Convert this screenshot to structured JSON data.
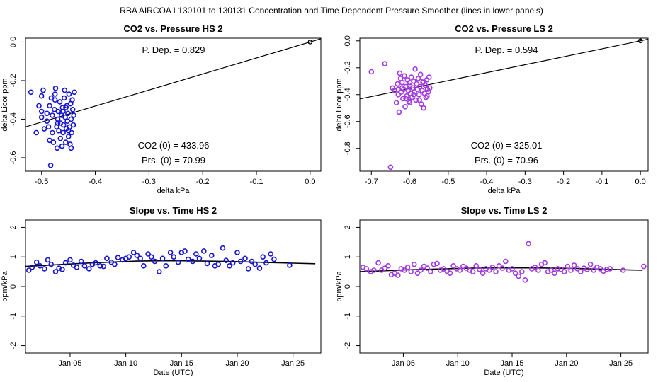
{
  "suptitle": "RBA   AIRCOA I   130101 to 130131   Concentration and Time Dependent Pressure Smoother (lines in lower panels)",
  "colors": {
    "hs": "#1515d0",
    "ls": "#a23be0",
    "line": "#000000",
    "axis": "#000000"
  },
  "chart_data": [
    {
      "id": "p1",
      "type": "scatter",
      "title": "CO2 vs. Pressure HS 2",
      "xlabel": "delta kPa",
      "ylabel": "delta Licor ppm",
      "xlim": [
        -0.53,
        0.02
      ],
      "ylim": [
        -0.67,
        0.02
      ],
      "xticks": [
        -0.5,
        -0.4,
        -0.3,
        -0.2,
        -0.1,
        0.0
      ],
      "xtick_labels": [
        "-0.5",
        "-0.4",
        "-0.3",
        "-0.2",
        "-0.1",
        "0.0"
      ],
      "yticks": [
        0.0,
        -0.2,
        -0.4,
        -0.6
      ],
      "ytick_labels": [
        "0.0",
        "-0.2",
        "-0.4",
        "-0.6"
      ],
      "annotations": {
        "p_dep": "P. Dep. =  0.829",
        "co2_0": "CO2 (0) =  433.96",
        "prs_0": "Prs. (0) =  70.99"
      },
      "fit_line": {
        "x": [
          -0.53,
          0.02
        ],
        "y": [
          -0.44,
          0.017
        ]
      },
      "anchor_point": {
        "x": 0.0,
        "y": 0.0
      },
      "color": "hs",
      "points": [
        [
          -0.52,
          -0.26
        ],
        [
          -0.51,
          -0.47
        ],
        [
          -0.505,
          -0.33
        ],
        [
          -0.5,
          -0.36
        ],
        [
          -0.5,
          -0.28
        ],
        [
          -0.497,
          -0.25
        ],
        [
          -0.495,
          -0.45
        ],
        [
          -0.49,
          -0.41
        ],
        [
          -0.49,
          -0.37
        ],
        [
          -0.487,
          -0.44
        ],
        [
          -0.485,
          -0.33
        ],
        [
          -0.483,
          -0.64
        ],
        [
          -0.482,
          -0.29
        ],
        [
          -0.48,
          -0.38
        ],
        [
          -0.48,
          -0.47
        ],
        [
          -0.478,
          -0.52
        ],
        [
          -0.476,
          -0.35
        ],
        [
          -0.475,
          -0.3
        ],
        [
          -0.474,
          -0.24
        ],
        [
          -0.472,
          -0.44
        ],
        [
          -0.471,
          -0.55
        ],
        [
          -0.47,
          -0.4
        ],
        [
          -0.469,
          -0.36
        ],
        [
          -0.468,
          -0.46
        ],
        [
          -0.466,
          -0.31
        ],
        [
          -0.465,
          -0.5
        ],
        [
          -0.465,
          -0.42
        ],
        [
          -0.463,
          -0.38
        ],
        [
          -0.462,
          -0.54
        ],
        [
          -0.461,
          -0.34
        ],
        [
          -0.46,
          -0.47
        ],
        [
          -0.459,
          -0.43
        ],
        [
          -0.458,
          -0.29
        ],
        [
          -0.457,
          -0.25
        ],
        [
          -0.456,
          -0.39
        ],
        [
          -0.455,
          -0.52
        ],
        [
          -0.454,
          -0.45
        ],
        [
          -0.453,
          -0.33
        ],
        [
          -0.452,
          -0.41
        ],
        [
          -0.451,
          -0.37
        ],
        [
          -0.45,
          -0.49
        ],
        [
          -0.449,
          -0.27
        ],
        [
          -0.448,
          -0.44
        ],
        [
          -0.447,
          -0.53
        ],
        [
          -0.446,
          -0.32
        ],
        [
          -0.445,
          -0.4
        ],
        [
          -0.444,
          -0.47
        ],
        [
          -0.443,
          -0.3
        ],
        [
          -0.442,
          -0.35
        ],
        [
          -0.441,
          -0.43
        ],
        [
          -0.44,
          -0.38
        ],
        [
          -0.439,
          -0.26
        ],
        [
          -0.445,
          -0.55
        ],
        [
          -0.455,
          -0.34
        ],
        [
          -0.47,
          -0.42
        ],
        [
          -0.5,
          -0.39
        ],
        [
          -0.485,
          -0.51
        ],
        [
          -0.46,
          -0.36
        ],
        [
          -0.45,
          -0.46
        ],
        [
          -0.475,
          -0.27
        ]
      ]
    },
    {
      "id": "p2",
      "type": "scatter",
      "title": "CO2 vs. Pressure LS 2",
      "xlabel": "delta kPa",
      "ylabel": "delta Licor ppm",
      "xlim": [
        -0.73,
        0.02
      ],
      "ylim": [
        -0.97,
        0.02
      ],
      "xticks": [
        -0.7,
        -0.6,
        -0.5,
        -0.4,
        -0.3,
        -0.2,
        -0.1,
        0.0
      ],
      "xtick_labels": [
        "-0.7",
        "-0.6",
        "-0.5",
        "-0.4",
        "-0.3",
        "-0.2",
        "-0.1",
        "0.0"
      ],
      "yticks": [
        0.0,
        -0.2,
        -0.4,
        -0.6,
        -0.8
      ],
      "ytick_labels": [
        "0.0",
        "-0.2",
        "-0.4",
        "-0.6",
        "-0.8"
      ],
      "annotations": {
        "p_dep": "P. Dep. =  0.594",
        "co2_0": "CO2 (0) =  325.01",
        "prs_0": "Prs. (0) =  70.96"
      },
      "fit_line": {
        "x": [
          -0.73,
          0.02
        ],
        "y": [
          -0.432,
          0.012
        ]
      },
      "anchor_point": {
        "x": 0.0,
        "y": 0.0
      },
      "color": "ls",
      "points": [
        [
          -0.7,
          -0.23
        ],
        [
          -0.665,
          -0.17
        ],
        [
          -0.65,
          -0.94
        ],
        [
          -0.645,
          -0.35
        ],
        [
          -0.64,
          -0.37
        ],
        [
          -0.635,
          -0.46
        ],
        [
          -0.632,
          -0.32
        ],
        [
          -0.63,
          -0.4
        ],
        [
          -0.628,
          -0.53
        ],
        [
          -0.626,
          -0.24
        ],
        [
          -0.624,
          -0.28
        ],
        [
          -0.622,
          -0.38
        ],
        [
          -0.62,
          -0.31
        ],
        [
          -0.618,
          -0.43
        ],
        [
          -0.616,
          -0.36
        ],
        [
          -0.614,
          -0.26
        ],
        [
          -0.612,
          -0.49
        ],
        [
          -0.61,
          -0.34
        ],
        [
          -0.608,
          -0.41
        ],
        [
          -0.606,
          -0.29
        ],
        [
          -0.604,
          -0.37
        ],
        [
          -0.602,
          -0.45
        ],
        [
          -0.6,
          -0.33
        ],
        [
          -0.598,
          -0.39
        ],
        [
          -0.596,
          -0.27
        ],
        [
          -0.594,
          -0.42
        ],
        [
          -0.592,
          -0.35
        ],
        [
          -0.59,
          -0.3
        ],
        [
          -0.588,
          -0.38
        ],
        [
          -0.586,
          -0.21
        ],
        [
          -0.584,
          -0.44
        ],
        [
          -0.582,
          -0.32
        ],
        [
          -0.58,
          -0.36
        ],
        [
          -0.578,
          -0.28
        ],
        [
          -0.576,
          -0.4
        ],
        [
          -0.574,
          -0.34
        ],
        [
          -0.572,
          -0.25
        ],
        [
          -0.57,
          -0.47
        ],
        [
          -0.568,
          -0.37
        ],
        [
          -0.566,
          -0.31
        ],
        [
          -0.564,
          -0.5
        ],
        [
          -0.562,
          -0.39
        ],
        [
          -0.56,
          -0.33
        ],
        [
          -0.558,
          -0.42
        ],
        [
          -0.556,
          -0.29
        ],
        [
          -0.554,
          -0.36
        ],
        [
          -0.552,
          -0.38
        ],
        [
          -0.55,
          -0.27
        ],
        [
          -0.548,
          -0.35
        ],
        [
          -0.61,
          -0.43
        ],
        [
          -0.59,
          -0.4
        ],
        [
          -0.62,
          -0.35
        ],
        [
          -0.6,
          -0.31
        ],
        [
          -0.575,
          -0.44
        ],
        [
          -0.565,
          -0.3
        ],
        [
          -0.555,
          -0.41
        ],
        [
          -0.63,
          -0.36
        ],
        [
          -0.6,
          -0.46
        ]
      ]
    },
    {
      "id": "p3",
      "type": "scatter",
      "title": "Slope vs. Time HS 2",
      "xlabel": "Date (UTC)",
      "ylabel": "ppm/kPa",
      "xlim": [
        0,
        26.5
      ],
      "ylim": [
        -2.25,
        2.25
      ],
      "xticks": [
        4,
        9,
        14,
        19,
        24
      ],
      "xtick_labels": [
        "Jan 05",
        "Jan 10",
        "Jan 15",
        "Jan 20",
        "Jan 25"
      ],
      "yticks": [
        2,
        1,
        0,
        -1,
        -2
      ],
      "ytick_labels": [
        "2",
        "1",
        "0",
        "-1",
        "-2"
      ],
      "smoother": {
        "x": [
          0,
          2,
          4,
          6,
          8,
          10,
          12,
          14,
          16,
          18,
          20,
          22,
          24,
          26
        ],
        "y": [
          0.68,
          0.72,
          0.76,
          0.8,
          0.83,
          0.86,
          0.87,
          0.87,
          0.86,
          0.85,
          0.83,
          0.81,
          0.79,
          0.77
        ]
      },
      "color": "hs",
      "points": [
        [
          0.3,
          0.55
        ],
        [
          0.6,
          0.65
        ],
        [
          1.0,
          0.82
        ],
        [
          1.3,
          0.7
        ],
        [
          1.7,
          0.6
        ],
        [
          2.0,
          0.9
        ],
        [
          2.3,
          0.75
        ],
        [
          2.7,
          0.5
        ],
        [
          3.0,
          0.62
        ],
        [
          3.3,
          0.58
        ],
        [
          3.6,
          0.8
        ],
        [
          4.0,
          0.9
        ],
        [
          4.3,
          0.72
        ],
        [
          4.6,
          0.65
        ],
        [
          5.0,
          0.85
        ],
        [
          5.3,
          0.7
        ],
        [
          5.7,
          0.6
        ],
        [
          6.0,
          0.75
        ],
        [
          6.3,
          0.8
        ],
        [
          6.7,
          0.7
        ],
        [
          7.0,
          0.68
        ],
        [
          7.3,
          0.95
        ],
        [
          7.7,
          0.82
        ],
        [
          8.0,
          0.75
        ],
        [
          8.3,
          0.98
        ],
        [
          8.7,
          0.9
        ],
        [
          9.0,
          0.95
        ],
        [
          9.3,
          1.0
        ],
        [
          9.7,
          1.15
        ],
        [
          10.0,
          1.05
        ],
        [
          10.3,
          0.95
        ],
        [
          10.6,
          0.7
        ],
        [
          11.0,
          1.1
        ],
        [
          11.3,
          1.0
        ],
        [
          11.6,
          0.85
        ],
        [
          12.0,
          0.5
        ],
        [
          12.3,
          0.95
        ],
        [
          12.6,
          0.7
        ],
        [
          13.0,
          1.15
        ],
        [
          13.3,
          1.0
        ],
        [
          13.7,
          0.82
        ],
        [
          14.0,
          1.15
        ],
        [
          14.3,
          1.2
        ],
        [
          14.6,
          0.92
        ],
        [
          15.0,
          0.85
        ],
        [
          15.3,
          1.1
        ],
        [
          15.6,
          0.95
        ],
        [
          16.0,
          1.2
        ],
        [
          16.3,
          0.78
        ],
        [
          16.7,
          1.05
        ],
        [
          17.0,
          0.7
        ],
        [
          17.3,
          0.75
        ],
        [
          17.7,
          1.3
        ],
        [
          18.0,
          0.88
        ],
        [
          18.3,
          0.7
        ],
        [
          18.6,
          0.8
        ],
        [
          19.0,
          1.15
        ],
        [
          19.3,
          0.85
        ],
        [
          19.7,
          0.95
        ],
        [
          20.0,
          0.6
        ],
        [
          20.3,
          0.85
        ],
        [
          20.6,
          0.75
        ],
        [
          21.0,
          0.62
        ],
        [
          21.3,
          1.0
        ],
        [
          21.6,
          0.8
        ],
        [
          22.0,
          1.1
        ],
        [
          22.3,
          0.92
        ],
        [
          23.7,
          0.72
        ]
      ]
    },
    {
      "id": "p4",
      "type": "scatter",
      "title": "Slope vs. Time LS 2",
      "xlabel": "Date (UTC)",
      "ylabel": "ppm/kPa",
      "xlim": [
        0,
        26.5
      ],
      "ylim": [
        -2.25,
        2.25
      ],
      "xticks": [
        4,
        9,
        14,
        19,
        24
      ],
      "xtick_labels": [
        "Jan 05",
        "Jan 10",
        "Jan 15",
        "Jan 20",
        "Jan 25"
      ],
      "yticks": [
        2,
        1,
        0,
        -1,
        -2
      ],
      "ytick_labels": [
        "2",
        "1",
        "0",
        "-1",
        "-2"
      ],
      "smoother": {
        "x": [
          0,
          2,
          4,
          6,
          8,
          10,
          12,
          14,
          16,
          18,
          20,
          22,
          24,
          26
        ],
        "y": [
          0.5,
          0.53,
          0.56,
          0.58,
          0.6,
          0.62,
          0.63,
          0.63,
          0.63,
          0.62,
          0.61,
          0.59,
          0.57,
          0.55
        ]
      },
      "color": "ls",
      "points": [
        [
          0.3,
          0.65
        ],
        [
          0.6,
          0.6
        ],
        [
          1.0,
          0.5
        ],
        [
          1.3,
          0.55
        ],
        [
          1.7,
          0.8
        ],
        [
          2.0,
          0.55
        ],
        [
          2.3,
          0.62
        ],
        [
          2.6,
          0.7
        ],
        [
          2.9,
          0.4
        ],
        [
          3.2,
          0.45
        ],
        [
          3.5,
          0.38
        ],
        [
          3.8,
          0.6
        ],
        [
          4.1,
          0.55
        ],
        [
          4.4,
          0.65
        ],
        [
          4.7,
          0.5
        ],
        [
          5.0,
          0.75
        ],
        [
          5.3,
          0.45
        ],
        [
          5.6,
          0.55
        ],
        [
          5.9,
          0.68
        ],
        [
          6.2,
          0.62
        ],
        [
          6.5,
          0.5
        ],
        [
          6.8,
          0.75
        ],
        [
          7.1,
          0.78
        ],
        [
          7.4,
          0.55
        ],
        [
          7.7,
          0.6
        ],
        [
          8.0,
          0.52
        ],
        [
          8.3,
          0.45
        ],
        [
          8.6,
          0.7
        ],
        [
          8.9,
          0.6
        ],
        [
          9.2,
          0.55
        ],
        [
          9.5,
          0.68
        ],
        [
          9.8,
          0.62
        ],
        [
          10.1,
          0.55
        ],
        [
          10.4,
          0.5
        ],
        [
          10.7,
          0.7
        ],
        [
          11.0,
          0.58
        ],
        [
          11.3,
          0.45
        ],
        [
          11.6,
          0.6
        ],
        [
          11.9,
          0.55
        ],
        [
          12.2,
          0.65
        ],
        [
          12.5,
          0.5
        ],
        [
          12.8,
          0.7
        ],
        [
          13.1,
          0.62
        ],
        [
          13.4,
          0.85
        ],
        [
          13.7,
          0.55
        ],
        [
          14.0,
          0.6
        ],
        [
          14.3,
          0.45
        ],
        [
          14.6,
          0.35
        ],
        [
          14.9,
          0.5
        ],
        [
          15.2,
          0.22
        ],
        [
          15.5,
          1.45
        ],
        [
          15.8,
          0.6
        ],
        [
          16.1,
          0.65
        ],
        [
          16.4,
          0.55
        ],
        [
          16.7,
          0.75
        ],
        [
          17.0,
          0.8
        ],
        [
          17.3,
          0.5
        ],
        [
          17.6,
          0.55
        ],
        [
          17.9,
          0.45
        ],
        [
          18.2,
          0.6
        ],
        [
          18.5,
          0.58
        ],
        [
          18.8,
          0.5
        ],
        [
          19.1,
          0.68
        ],
        [
          19.4,
          0.55
        ],
        [
          19.7,
          0.72
        ],
        [
          20.0,
          0.6
        ],
        [
          20.3,
          0.5
        ],
        [
          20.6,
          0.62
        ],
        [
          20.9,
          0.58
        ],
        [
          21.2,
          0.75
        ],
        [
          21.5,
          0.55
        ],
        [
          21.8,
          0.65
        ],
        [
          22.1,
          0.6
        ],
        [
          22.4,
          0.52
        ],
        [
          22.7,
          0.58
        ],
        [
          23.0,
          0.6
        ],
        [
          24.2,
          0.55
        ],
        [
          26.1,
          0.68
        ]
      ]
    }
  ]
}
